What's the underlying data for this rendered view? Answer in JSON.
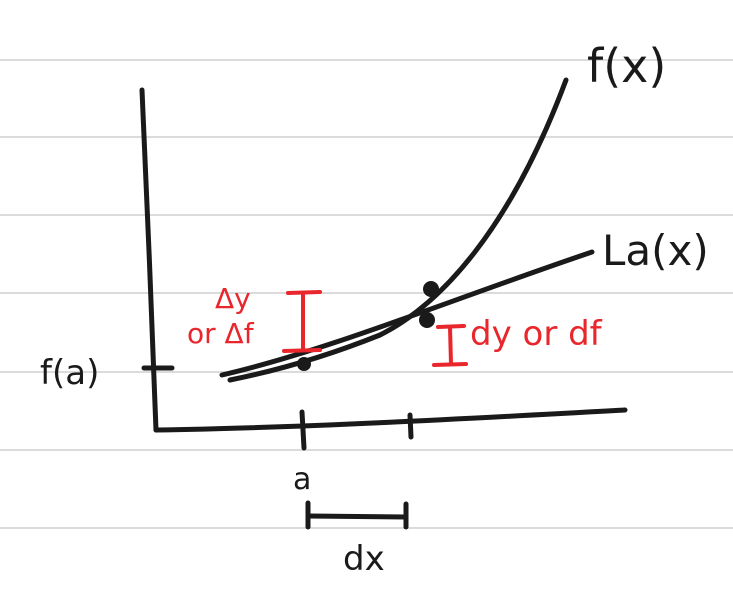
{
  "labels": {
    "f": "f(x)",
    "L": "La(x)",
    "fa": "f(a)",
    "a": "a",
    "dx": "dx",
    "delta_y": "Δy",
    "or_delta_f": "or Δf",
    "dy_or_df": "dy or df"
  },
  "colors": {
    "ink": "#1a1a1a",
    "red": "#e8262b",
    "ruled_line": "#cfcfcf",
    "paper": "#ffffff"
  }
}
